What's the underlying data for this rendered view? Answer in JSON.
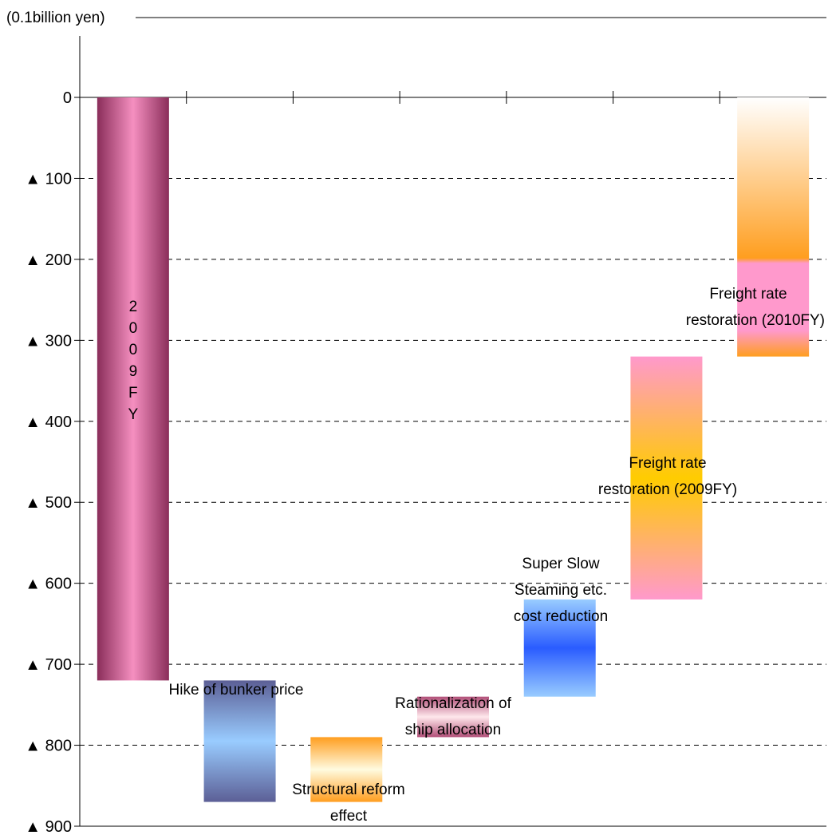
{
  "chart_data": {
    "type": "waterfall",
    "unit_label": "(0.1billion yen)",
    "y_ticks": [
      {
        "value": 0,
        "label": "0"
      },
      {
        "value": -100,
        "label": "▲ 100"
      },
      {
        "value": -200,
        "label": "▲ 200"
      },
      {
        "value": -300,
        "label": "▲ 300"
      },
      {
        "value": -400,
        "label": "▲ 400"
      },
      {
        "value": -500,
        "label": "▲ 500"
      },
      {
        "value": -600,
        "label": "▲ 600"
      },
      {
        "value": -700,
        "label": "▲ 700"
      },
      {
        "value": -800,
        "label": "▲ 800"
      },
      {
        "value": -900,
        "label": "▲ 900"
      }
    ],
    "ylim": [
      -900,
      0
    ],
    "grid": "dashed",
    "bars": [
      {
        "label": "2009FY",
        "start": 0,
        "end": -720,
        "label_lines": [
          "2",
          "0",
          "0",
          "9",
          "F",
          "Y"
        ],
        "colors": [
          "#8a2e5a",
          "#f58fc0",
          "#8a2e5a"
        ]
      },
      {
        "label": "Hike of bunker price",
        "start": -720,
        "end": -870,
        "label_lines": [
          "Hike of bunker price"
        ],
        "colors": [
          "#5c5f96",
          "#99ccff",
          "#5c5f96"
        ]
      },
      {
        "label": "Structural reform effect",
        "start": -870,
        "end": -790,
        "label_lines": [
          "Structural reform",
          "effect"
        ],
        "colors": [
          "#ff9e1f",
          "#fffbe0",
          "#ff9e1f"
        ]
      },
      {
        "label": "Rationalization of ship allocation",
        "start": -790,
        "end": -740,
        "label_lines": [
          "Rationalization of",
          "ship allocation"
        ],
        "colors": [
          "#b24f78",
          "#ffe8ec",
          "#b24f78"
        ]
      },
      {
        "label": "Super Slow Steaming etc. cost reduction",
        "start": -740,
        "end": -620,
        "label_lines": [
          "Super Slow",
          "Steaming etc.",
          "cost reduction"
        ],
        "colors": [
          "#99ccff",
          "#2a5cff",
          "#99ccff"
        ]
      },
      {
        "label": "Freight rate restoration (2009FY)",
        "start": -620,
        "end": -320,
        "label_lines": [
          "Freight rate",
          "restoration (2009FY)"
        ],
        "colors": [
          "#ff99cc",
          "#ffcc00",
          "#ff99cc"
        ]
      },
      {
        "label": "Freight rate restoration (2010FY)",
        "start": -320,
        "end": 0,
        "label_lines": [
          "Freight rate",
          "restoration (2010FY)"
        ],
        "colors": [
          "#ff9e1f",
          "#ff99cc",
          "#ff9e1f"
        ]
      }
    ]
  }
}
